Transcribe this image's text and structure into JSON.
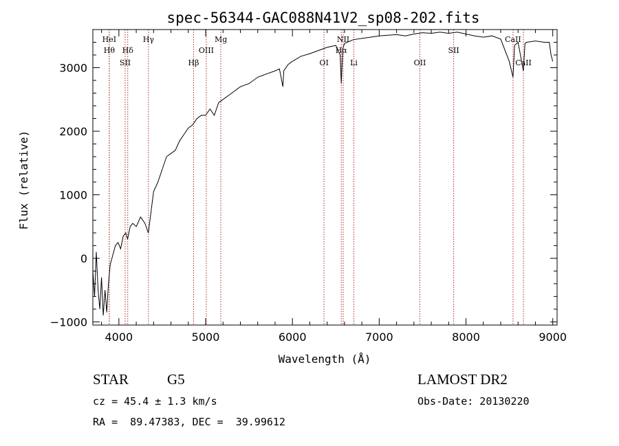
{
  "chart_data": {
    "type": "line",
    "title": "spec-56344-GAC088N41V2_sp08-202.fits",
    "xlabel": "Wavelength (Å)",
    "ylabel": "Flux (relative)",
    "xlim": [
      3700,
      9050
    ],
    "ylim": [
      -1050,
      3600
    ],
    "xticks": [
      4000,
      5000,
      6000,
      7000,
      8000,
      9000
    ],
    "yticks": [
      -1000,
      0,
      1000,
      2000,
      3000
    ],
    "series": [
      {
        "name": "spectrum",
        "x": [
          3700,
          3720,
          3740,
          3760,
          3780,
          3800,
          3820,
          3840,
          3860,
          3880,
          3900,
          3930,
          3960,
          3990,
          4020,
          4050,
          4080,
          4100,
          4130,
          4160,
          4200,
          4250,
          4300,
          4340,
          4400,
          4450,
          4500,
          4550,
          4600,
          4650,
          4700,
          4750,
          4800,
          4850,
          4900,
          4950,
          5000,
          5050,
          5100,
          5150,
          5200,
          5300,
          5400,
          5500,
          5600,
          5700,
          5800,
          5850,
          5890,
          5900,
          5950,
          6000,
          6100,
          6200,
          6300,
          6400,
          6500,
          6550,
          6563,
          6580,
          6600,
          6700,
          6800,
          6900,
          7000,
          7100,
          7200,
          7300,
          7400,
          7500,
          7600,
          7700,
          7800,
          7900,
          8000,
          8100,
          8200,
          8300,
          8400,
          8498,
          8542,
          8560,
          8600,
          8662,
          8680,
          8700,
          8800,
          8900,
          8960,
          8980,
          9000
        ],
        "values": [
          -200,
          -600,
          100,
          -500,
          -800,
          -300,
          -900,
          -500,
          -850,
          -400,
          -100,
          50,
          200,
          250,
          150,
          350,
          400,
          300,
          500,
          550,
          500,
          650,
          550,
          400,
          1050,
          1200,
          1400,
          1600,
          1650,
          1700,
          1850,
          1950,
          2050,
          2100,
          2200,
          2250,
          2250,
          2350,
          2250,
          2450,
          2500,
          2600,
          2700,
          2750,
          2850,
          2900,
          2950,
          2980,
          2700,
          2950,
          3050,
          3100,
          3180,
          3220,
          3270,
          3320,
          3350,
          3200,
          2750,
          3300,
          3380,
          3440,
          3460,
          3480,
          3500,
          3510,
          3520,
          3500,
          3530,
          3550,
          3540,
          3560,
          3540,
          3560,
          3530,
          3500,
          3480,
          3500,
          3450,
          3100,
          2850,
          3350,
          3400,
          2950,
          3380,
          3400,
          3420,
          3400,
          3400,
          3200,
          3100
        ]
      }
    ],
    "lines": [
      {
        "wl": 3889,
        "label": "Hθ",
        "row": 2
      },
      {
        "wl": 3889,
        "label": "HeI",
        "row": 1
      },
      {
        "wl": 4072,
        "label": "SII",
        "row": 4
      },
      {
        "wl": 4102,
        "label": "Hδ",
        "row": 2
      },
      {
        "wl": 4341,
        "label": "Hγ",
        "row": 1
      },
      {
        "wl": 4861,
        "label": "Hβ",
        "row": 4
      },
      {
        "wl": 5007,
        "label": "OIII",
        "row": 2
      },
      {
        "wl": 5175,
        "label": "Mg",
        "row": 1
      },
      {
        "wl": 6364,
        "label": "OI",
        "row": 4
      },
      {
        "wl": 6563,
        "label": "Hα",
        "row": 2
      },
      {
        "wl": 6585,
        "label": "NII",
        "row": 1
      },
      {
        "wl": 6708,
        "label": "Li",
        "row": 4
      },
      {
        "wl": 7469,
        "label": "OII",
        "row": 4
      },
      {
        "wl": 7858,
        "label": "SII",
        "row": 2
      },
      {
        "wl": 8542,
        "label": "CaII",
        "row": 1
      },
      {
        "wl": 8662,
        "label": "CaII",
        "row": 4
      }
    ]
  },
  "info": {
    "class": "STAR",
    "subclass": "G5",
    "survey": "LAMOST DR2",
    "redshift": "cz = 45.4 ± 1.3 km/s",
    "obsdate": "Obs-Date: 20130220",
    "coords": "RA =  89.47383, DEC =  39.99612"
  }
}
